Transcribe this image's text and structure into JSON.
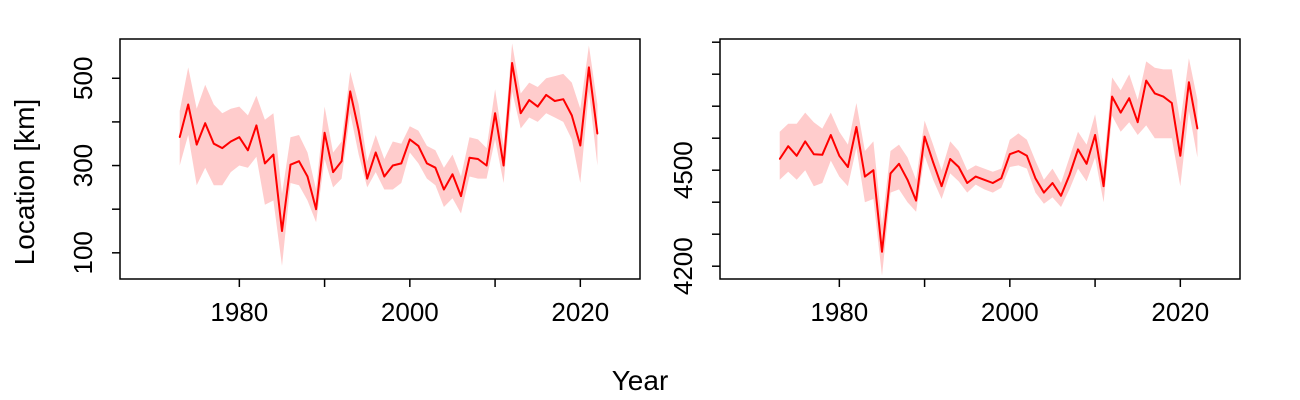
{
  "figure": {
    "xlabel": "Year",
    "ylabel": "Location [km]"
  },
  "colors": {
    "line": "#ff0000",
    "band": "#ffcccc",
    "frame": "#000000"
  },
  "chart_data": [
    {
      "type": "line",
      "title": "",
      "xlabel": "Year",
      "ylabel": "Location [km]",
      "xlim": [
        1966,
        2027
      ],
      "ylim": [
        40,
        590
      ],
      "x_ticks": [
        1980,
        1990,
        2000,
        2010,
        2020
      ],
      "x_tick_labels": [
        "1980",
        "",
        "2000",
        "",
        "2020"
      ],
      "y_ticks": [
        100,
        200,
        300,
        400,
        500
      ],
      "y_tick_labels": [
        "100",
        "",
        "300",
        "",
        "500"
      ],
      "grid": false,
      "legend": "none",
      "series": [
        {
          "x": [
            1973,
            1974,
            1975,
            1976,
            1977,
            1978,
            1979,
            1980,
            1981,
            1982,
            1983,
            1984,
            1985,
            1986,
            1987,
            1988,
            1989,
            1990,
            1991,
            1992,
            1993,
            1994,
            1995,
            1996,
            1997,
            1998,
            1999,
            2000,
            2001,
            2002,
            2003,
            2004,
            2005,
            2006,
            2007,
            2008,
            2009,
            2010,
            2011,
            2012,
            2013,
            2014,
            2015,
            2016,
            2017,
            2018,
            2019,
            2020,
            2021,
            2022
          ],
          "y": [
            365,
            440,
            348,
            397,
            350,
            340,
            355,
            365,
            335,
            392,
            305,
            325,
            150,
            302,
            310,
            275,
            200,
            375,
            285,
            310,
            470,
            380,
            270,
            330,
            275,
            300,
            305,
            360,
            345,
            305,
            295,
            245,
            280,
            230,
            318,
            315,
            300,
            420,
            300,
            535,
            420,
            450,
            435,
            462,
            448,
            452,
            415,
            346,
            525,
            373
          ],
          "lower": [
            300,
            370,
            255,
            295,
            255,
            255,
            285,
            300,
            295,
            320,
            210,
            220,
            70,
            260,
            255,
            220,
            170,
            315,
            250,
            270,
            420,
            325,
            250,
            285,
            245,
            245,
            260,
            330,
            305,
            270,
            255,
            205,
            225,
            190,
            275,
            270,
            270,
            360,
            260,
            470,
            385,
            410,
            400,
            420,
            410,
            400,
            360,
            260,
            470,
            300
          ],
          "upper": [
            425,
            525,
            430,
            485,
            440,
            420,
            430,
            435,
            415,
            460,
            405,
            420,
            235,
            365,
            370,
            330,
            245,
            435,
            330,
            355,
            515,
            440,
            310,
            370,
            315,
            355,
            350,
            390,
            380,
            345,
            335,
            295,
            325,
            275,
            365,
            360,
            340,
            475,
            345,
            580,
            465,
            490,
            480,
            500,
            505,
            510,
            490,
            430,
            575,
            440
          ]
        }
      ]
    },
    {
      "type": "line",
      "title": "",
      "xlabel": "Year",
      "ylabel": "",
      "xlim": [
        1966,
        2027
      ],
      "ylim": [
        4160,
        4910
      ],
      "x_ticks": [
        1980,
        1990,
        2000,
        2010,
        2020
      ],
      "x_tick_labels": [
        "1980",
        "",
        "2000",
        "",
        "2020"
      ],
      "y_ticks": [
        4200,
        4300,
        4400,
        4500,
        4600,
        4700,
        4800,
        4900
      ],
      "y_tick_labels": [
        "4200",
        "",
        "",
        "4500",
        "",
        "",
        "",
        ""
      ],
      "grid": false,
      "legend": "none",
      "series": [
        {
          "x": [
            1973,
            1974,
            1975,
            1976,
            1977,
            1978,
            1979,
            1980,
            1981,
            1982,
            1983,
            1984,
            1985,
            1986,
            1987,
            1988,
            1989,
            1990,
            1991,
            1992,
            1993,
            1994,
            1995,
            1996,
            1997,
            1998,
            1999,
            2000,
            2001,
            2002,
            2003,
            2004,
            2005,
            2006,
            2007,
            2008,
            2009,
            2010,
            2011,
            2012,
            2013,
            2014,
            2015,
            2016,
            2017,
            2018,
            2019,
            2020,
            2021,
            2022
          ],
          "y": [
            4535,
            4575,
            4545,
            4590,
            4550,
            4548,
            4610,
            4545,
            4510,
            4635,
            4480,
            4500,
            4245,
            4490,
            4520,
            4470,
            4405,
            4605,
            4525,
            4450,
            4535,
            4510,
            4460,
            4480,
            4470,
            4460,
            4475,
            4550,
            4560,
            4545,
            4475,
            4430,
            4460,
            4420,
            4485,
            4565,
            4520,
            4610,
            4450,
            4730,
            4680,
            4725,
            4650,
            4780,
            4740,
            4730,
            4710,
            4545,
            4775,
            4630
          ],
          "lower": [
            4470,
            4495,
            4470,
            4500,
            4450,
            4460,
            4530,
            4480,
            4450,
            4570,
            4400,
            4410,
            4170,
            4430,
            4440,
            4400,
            4370,
            4545,
            4470,
            4410,
            4490,
            4465,
            4430,
            4455,
            4440,
            4430,
            4445,
            4510,
            4515,
            4505,
            4430,
            4395,
            4415,
            4385,
            4440,
            4505,
            4465,
            4540,
            4400,
            4670,
            4620,
            4650,
            4610,
            4640,
            4600,
            4600,
            4600,
            4450,
            4685,
            4540
          ],
          "upper": [
            4620,
            4645,
            4645,
            4680,
            4650,
            4630,
            4680,
            4620,
            4580,
            4710,
            4560,
            4590,
            4330,
            4560,
            4580,
            4540,
            4470,
            4655,
            4580,
            4500,
            4590,
            4560,
            4500,
            4515,
            4505,
            4495,
            4505,
            4595,
            4615,
            4595,
            4530,
            4470,
            4505,
            4460,
            4540,
            4620,
            4580,
            4675,
            4510,
            4790,
            4750,
            4800,
            4720,
            4840,
            4820,
            4815,
            4815,
            4650,
            4850,
            4720
          ]
        }
      ]
    }
  ]
}
